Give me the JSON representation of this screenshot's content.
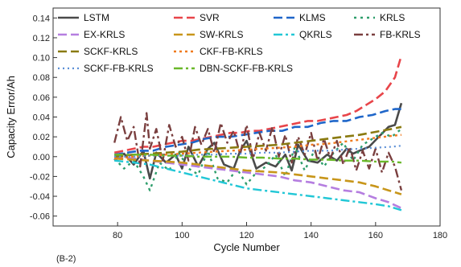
{
  "panel_label": "(B-2)",
  "chart_data": {
    "type": "line",
    "xlabel": "Cycle Number",
    "ylabel": "Capacity Error/Ah",
    "xlim": [
      60,
      180
    ],
    "ylim": [
      -0.07,
      0.15
    ],
    "xticks": [
      80,
      100,
      120,
      140,
      160,
      180
    ],
    "yticks": [
      -0.06,
      -0.04,
      -0.02,
      0.0,
      0.02,
      0.04,
      0.06,
      0.08,
      0.1,
      0.12,
      0.14
    ],
    "ytick_labels": [
      "-0.06",
      "-0.04",
      "-0.02",
      "0.00",
      "0.02",
      "0.04",
      "0.06",
      "0.08",
      "0.10",
      "0.12",
      "0.14"
    ],
    "grid": false,
    "legend_placement": "top",
    "series": [
      {
        "name": "LSTM",
        "color": "#4a4a4a",
        "dash": "solid",
        "width": 2.6,
        "x": [
          79,
          82,
          85,
          88,
          90,
          92,
          95,
          98,
          100,
          102,
          105,
          108,
          110,
          113,
          116,
          118,
          120,
          123,
          126,
          129,
          132,
          134,
          136,
          139,
          142,
          145,
          148,
          151,
          153,
          155,
          158,
          161,
          164,
          166,
          168
        ],
        "y": [
          -0.004,
          0.003,
          -0.008,
          0.006,
          -0.022,
          0.004,
          -0.006,
          0.002,
          -0.012,
          0.01,
          -0.01,
          0.008,
          0.014,
          -0.008,
          -0.012,
          0.006,
          0.016,
          -0.012,
          -0.006,
          -0.01,
          0.002,
          -0.014,
          0.012,
          -0.004,
          -0.006,
          0.002,
          -0.004,
          0.008,
          0.003,
          0.006,
          0.01,
          0.02,
          0.03,
          0.032,
          0.054
        ]
      },
      {
        "name": "SVR",
        "color": "#e8454a",
        "dash": "11 5",
        "width": 2.6,
        "x": [
          79,
          82,
          85,
          88,
          91,
          94,
          97,
          100,
          103,
          106,
          109,
          112,
          115,
          118,
          121,
          124,
          127,
          130,
          133,
          136,
          139,
          142,
          145,
          148,
          151,
          154,
          157,
          160,
          163,
          166,
          168
        ],
        "y": [
          0.004,
          0.006,
          0.008,
          0.01,
          0.01,
          0.012,
          0.014,
          0.016,
          0.016,
          0.018,
          0.02,
          0.022,
          0.024,
          0.024,
          0.026,
          0.026,
          0.028,
          0.03,
          0.032,
          0.034,
          0.036,
          0.036,
          0.038,
          0.04,
          0.042,
          0.046,
          0.052,
          0.058,
          0.066,
          0.08,
          0.102
        ]
      },
      {
        "name": "KLMS",
        "color": "#1f66c9",
        "dash": "11 5",
        "width": 2.6,
        "x": [
          79,
          83,
          87,
          91,
          95,
          99,
          103,
          107,
          111,
          115,
          119,
          123,
          127,
          131,
          135,
          139,
          143,
          147,
          151,
          155,
          159,
          163,
          166,
          168
        ],
        "y": [
          0.002,
          0.004,
          0.006,
          0.006,
          0.01,
          0.012,
          0.014,
          0.018,
          0.02,
          0.02,
          0.022,
          0.024,
          0.026,
          0.026,
          0.03,
          0.03,
          0.034,
          0.036,
          0.036,
          0.04,
          0.042,
          0.046,
          0.048,
          0.048
        ]
      },
      {
        "name": "KRLS",
        "color": "#2e9e6c",
        "dash": "3 5",
        "width": 2.4,
        "x": [
          79,
          82,
          85,
          88,
          90,
          93,
          96,
          99,
          102,
          105,
          108,
          111,
          114,
          117,
          120,
          123,
          126,
          129,
          132,
          135,
          138,
          141,
          144,
          147,
          150,
          153,
          156,
          159,
          162,
          165,
          168
        ],
        "y": [
          -0.002,
          -0.012,
          -0.004,
          -0.02,
          -0.034,
          -0.006,
          -0.014,
          0.004,
          -0.012,
          -0.018,
          0.006,
          -0.022,
          -0.026,
          -0.012,
          -0.028,
          -0.016,
          -0.01,
          0.002,
          -0.02,
          0.01,
          -0.014,
          0.006,
          -0.01,
          0.004,
          0.014,
          -0.004,
          0.012,
          0.018,
          0.024,
          0.02,
          0.028
        ]
      },
      {
        "name": "EX-KRLS",
        "color": "#b57ee0",
        "dash": "11 5",
        "width": 2.6,
        "x": [
          79,
          85,
          90,
          95,
          100,
          105,
          110,
          115,
          120,
          125,
          130,
          135,
          140,
          145,
          150,
          155,
          160,
          164,
          168
        ],
        "y": [
          0.0,
          -0.002,
          -0.004,
          -0.006,
          -0.008,
          -0.01,
          -0.012,
          -0.014,
          -0.016,
          -0.018,
          -0.02,
          -0.024,
          -0.026,
          -0.03,
          -0.034,
          -0.036,
          -0.042,
          -0.046,
          -0.052
        ]
      },
      {
        "name": "SW-KRLS",
        "color": "#c8961a",
        "dash": "11 5",
        "width": 2.6,
        "x": [
          79,
          85,
          90,
          95,
          100,
          105,
          110,
          115,
          120,
          125,
          130,
          135,
          140,
          145,
          150,
          155,
          160,
          164,
          168
        ],
        "y": [
          -0.002,
          -0.003,
          -0.004,
          -0.005,
          -0.006,
          -0.008,
          -0.01,
          -0.012,
          -0.014,
          -0.015,
          -0.016,
          -0.018,
          -0.02,
          -0.022,
          -0.024,
          -0.026,
          -0.03,
          -0.034,
          -0.038
        ]
      },
      {
        "name": "QKRLS",
        "color": "#22c7d6",
        "dash": "11 4 3 4",
        "width": 2.4,
        "x": [
          79,
          85,
          90,
          95,
          100,
          105,
          110,
          115,
          120,
          125,
          130,
          135,
          140,
          145,
          150,
          155,
          160,
          164,
          168
        ],
        "y": [
          -0.004,
          -0.006,
          -0.008,
          -0.012,
          -0.016,
          -0.02,
          -0.024,
          -0.028,
          -0.032,
          -0.034,
          -0.036,
          -0.038,
          -0.04,
          -0.042,
          -0.044,
          -0.046,
          -0.048,
          -0.05,
          -0.054
        ]
      },
      {
        "name": "FB-KRLS",
        "color": "#7a3f3f",
        "dash": "11 4 3 4",
        "width": 2.4,
        "x": [
          79,
          81,
          83,
          85,
          87,
          89,
          90,
          92,
          94,
          96,
          98,
          100,
          102,
          104,
          106,
          108,
          110,
          112,
          114,
          116,
          118,
          120,
          122,
          124,
          126,
          128,
          130,
          132,
          134,
          136,
          138,
          140,
          142,
          144,
          146,
          148,
          150,
          152,
          154,
          156,
          158,
          160,
          162,
          164,
          166,
          168
        ],
        "y": [
          0.014,
          0.04,
          0.016,
          0.03,
          -0.01,
          0.044,
          0.008,
          0.028,
          -0.004,
          0.032,
          0.01,
          0.02,
          -0.004,
          0.03,
          0.012,
          0.028,
          0.004,
          0.034,
          0.014,
          0.026,
          0.002,
          0.032,
          -0.002,
          0.024,
          0.006,
          0.03,
          0.0,
          0.022,
          -0.006,
          0.02,
          0.002,
          0.024,
          -0.004,
          0.018,
          -0.002,
          0.016,
          -0.008,
          0.01,
          -0.014,
          0.006,
          -0.012,
          0.008,
          -0.016,
          0.004,
          -0.01,
          -0.034
        ]
      },
      {
        "name": "SCKF-KRLS",
        "color": "#8a7a10",
        "dash": "11 5",
        "width": 2.6,
        "x": [
          79,
          85,
          90,
          95,
          100,
          105,
          110,
          115,
          120,
          125,
          130,
          135,
          140,
          145,
          150,
          155,
          160,
          165,
          168
        ],
        "y": [
          0.0,
          0.002,
          0.003,
          0.004,
          0.005,
          0.007,
          0.008,
          0.009,
          0.01,
          0.011,
          0.012,
          0.014,
          0.016,
          0.018,
          0.02,
          0.022,
          0.025,
          0.028,
          0.03
        ]
      },
      {
        "name": "CKF-FB-KRLS",
        "color": "#f07a1e",
        "dash": "3 4",
        "width": 2.4,
        "x": [
          79,
          85,
          90,
          95,
          100,
          105,
          110,
          115,
          120,
          125,
          130,
          135,
          140,
          145,
          150,
          155,
          160,
          165,
          168
        ],
        "y": [
          -0.002,
          0.0,
          0.001,
          0.002,
          0.003,
          0.004,
          0.005,
          0.006,
          0.007,
          0.008,
          0.009,
          0.01,
          0.012,
          0.013,
          0.015,
          0.017,
          0.019,
          0.021,
          0.022
        ]
      },
      {
        "name": "SCKF-FB-KRLS",
        "color": "#5b8fd6",
        "dash": "2 4",
        "width": 2.2,
        "x": [
          79,
          85,
          90,
          95,
          100,
          105,
          110,
          115,
          120,
          125,
          130,
          135,
          140,
          145,
          150,
          155,
          160,
          165,
          168
        ],
        "y": [
          0.0,
          0.0,
          0.001,
          0.001,
          0.001,
          0.002,
          0.002,
          0.003,
          0.003,
          0.004,
          0.004,
          0.005,
          0.006,
          0.006,
          0.007,
          0.008,
          0.009,
          0.01,
          0.011
        ]
      },
      {
        "name": "DBN-SCKF-FB-KRLS",
        "color": "#6ab82a",
        "dash": "11 4 3 4",
        "width": 2.4,
        "x": [
          79,
          85,
          90,
          95,
          100,
          105,
          110,
          115,
          120,
          125,
          130,
          135,
          140,
          145,
          150,
          155,
          160,
          165,
          168
        ],
        "y": [
          0.002,
          0.002,
          0.002,
          0.001,
          0.001,
          0.0,
          0.0,
          0.0,
          -0.001,
          -0.001,
          -0.002,
          -0.002,
          -0.003,
          -0.003,
          -0.004,
          -0.004,
          -0.005,
          -0.005,
          -0.006
        ]
      }
    ]
  }
}
